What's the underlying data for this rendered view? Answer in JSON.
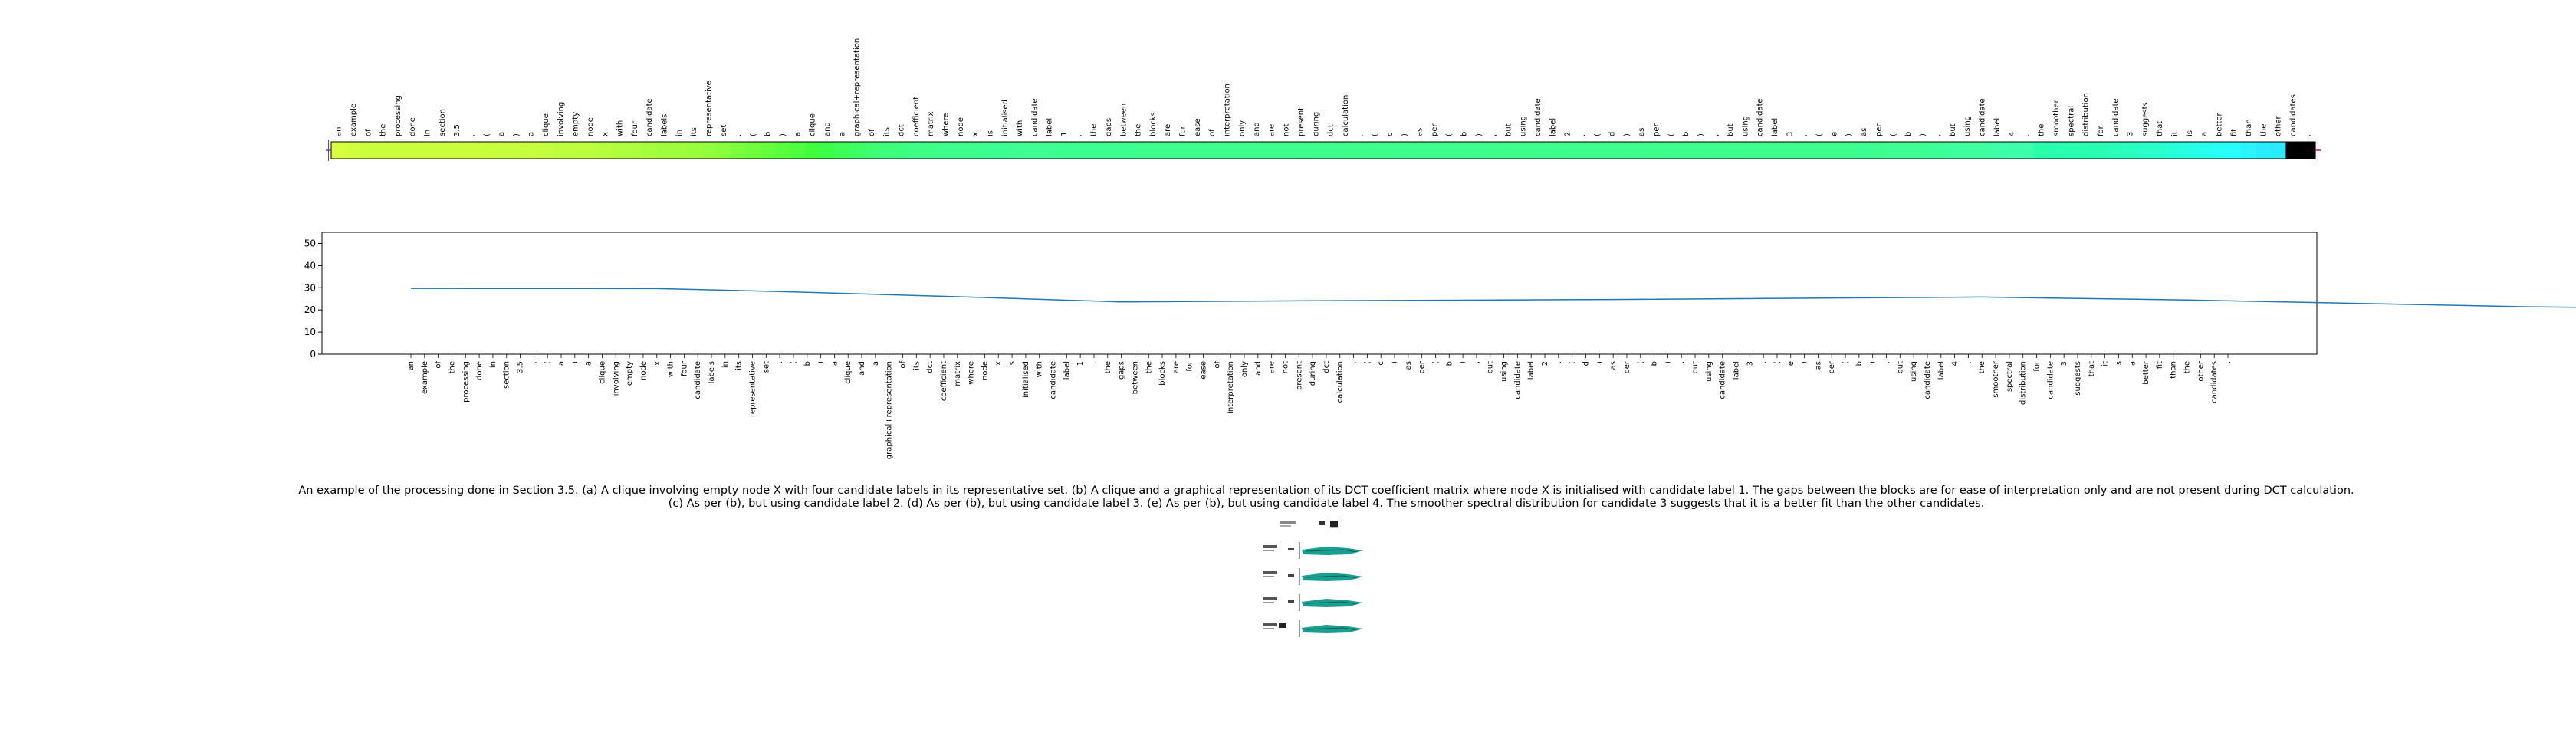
{
  "chart_data": [
    {
      "type": "heatmap",
      "colormap": "gist_rainbow",
      "tokens": [
        "an",
        "example",
        "of",
        "the",
        "processing",
        "done",
        "in",
        "section",
        "3.5",
        ".",
        "(",
        "a",
        ")",
        "a",
        "clique",
        "involving",
        "empty",
        "node",
        "x",
        "with",
        "four",
        "candidate",
        "labels",
        "in",
        "its",
        "representative",
        "set",
        ".",
        "(",
        "b",
        ")",
        "a",
        "clique",
        "and",
        "a",
        "graphical+representation",
        "of",
        "its",
        "dct",
        "coefficient",
        "matrix",
        "where",
        "node",
        "x",
        "is",
        "initialised",
        "with",
        "candidate",
        "label",
        "1",
        ".",
        "the",
        "gaps",
        "between",
        "the",
        "blocks",
        "are",
        "for",
        "ease",
        "of",
        "interpretation",
        "only",
        "and",
        "are",
        "not",
        "present",
        "during",
        "dct",
        "calculation",
        ".",
        "(",
        "c",
        ")",
        "as",
        "per",
        "(",
        "b",
        ")",
        ",",
        "but",
        "using",
        "candidate",
        "label",
        "2",
        ".",
        "(",
        "d",
        ")",
        "as",
        "per",
        "(",
        "b",
        ")",
        ",",
        "but",
        "using",
        "candidate",
        "label",
        "3",
        ".",
        "(",
        "e",
        ")",
        "as",
        "per",
        "(",
        "b",
        ")",
        ",",
        "but",
        "using",
        "candidate",
        "label",
        "4",
        ".",
        "the",
        "smoother",
        "spectral",
        "distribution",
        "for",
        "candidate",
        "3",
        "suggests",
        "that",
        "it",
        "is",
        "a",
        "better",
        "fit",
        "than",
        "the",
        "other",
        "candidates",
        "."
      ],
      "values": [
        0.199,
        0.205,
        0.21,
        0.21,
        0.21,
        0.21,
        0.21,
        0.21,
        0.211,
        0.212,
        0.213,
        0.214,
        0.216,
        0.218,
        0.22,
        0.221,
        0.222,
        0.225,
        0.23,
        0.236,
        0.24,
        0.245,
        0.249,
        0.251,
        0.256,
        0.262,
        0.27,
        0.28,
        0.29,
        0.3,
        0.31,
        0.32,
        0.33,
        0.342,
        0.355,
        0.368,
        0.378,
        0.385,
        0.39,
        0.394,
        0.397,
        0.4,
        0.402,
        0.404,
        0.405,
        0.406,
        0.407,
        0.407,
        0.407,
        0.406,
        0.406,
        0.406,
        0.405,
        0.405,
        0.404,
        0.404,
        0.403,
        0.403,
        0.403,
        0.403,
        0.402,
        0.402,
        0.402,
        0.402,
        0.402,
        0.401,
        0.401,
        0.401,
        0.401,
        0.401,
        0.401,
        0.401,
        0.401,
        0.401,
        0.401,
        0.401,
        0.401,
        0.401,
        0.401,
        0.401,
        0.401,
        0.401,
        0.401,
        0.401,
        0.401,
        0.401,
        0.401,
        0.401,
        0.401,
        0.401,
        0.401,
        0.401,
        0.401,
        0.401,
        0.401,
        0.401,
        0.401,
        0.401,
        0.401,
        0.402,
        0.402,
        0.403,
        0.404,
        0.405,
        0.406,
        0.407,
        0.408,
        0.409,
        0.411,
        0.413,
        0.415,
        0.418,
        0.421,
        0.425,
        0.428,
        0.432,
        0.435,
        0.438,
        0.44,
        0.443,
        0.446,
        0.45,
        0.455,
        0.462,
        0.47,
        0.478,
        0.486,
        0.494,
        0.502,
        0.508,
        0.513,
        0.518
      ]
    },
    {
      "type": "line",
      "series_color": "#1f77b4",
      "ylim": [
        0,
        55
      ],
      "yticks": [
        0,
        10,
        20,
        30,
        40,
        50
      ],
      "x_tokens": [
        "an",
        "example",
        "of",
        "the",
        "processing",
        "done",
        "in",
        "section",
        "3.5",
        ".",
        "(",
        "a",
        ")",
        "a",
        "clique",
        "involving",
        "empty",
        "node",
        "x",
        "with",
        "four",
        "candidate",
        "labels",
        "in",
        "its",
        "representative",
        "set",
        ".",
        "(",
        "b",
        ")",
        "a",
        "clique",
        "and",
        "a",
        "graphical+representation",
        "of",
        "its",
        "dct",
        "coefficient",
        "matrix",
        "where",
        "node",
        "x",
        "is",
        "initialised",
        "with",
        "candidate",
        "label",
        "1",
        ".",
        "the",
        "gaps",
        "between",
        "the",
        "blocks",
        "are",
        "for",
        "ease",
        "of",
        "interpretation",
        "only",
        "and",
        "are",
        "not",
        "present",
        "during",
        "dct",
        "calculation",
        ".",
        "(",
        "c",
        ")",
        "as",
        "per",
        "(",
        "b",
        ")",
        ",",
        "but",
        "using",
        "candidate",
        "label",
        "2",
        ".",
        "(",
        "d",
        ")",
        "as",
        "per",
        "(",
        "b",
        ")",
        ",",
        "but",
        "using",
        "candidate",
        "label",
        "3",
        ".",
        "(",
        "e",
        ")",
        "as",
        "per",
        "(",
        "b",
        ")",
        ",",
        "but",
        "using",
        "candidate",
        "label",
        "4",
        ".",
        "the",
        "smoother",
        "spectral",
        "distribution",
        "for",
        "candidate",
        "3",
        "suggests",
        "that",
        "it",
        "is",
        "a",
        "better",
        "fit",
        "than",
        "the",
        "other",
        "candidates",
        "."
      ],
      "points": [
        [
          0,
          29.7
        ],
        [
          18,
          29.6
        ],
        [
          27,
          28.3
        ],
        [
          42,
          25.6
        ],
        [
          52,
          23.6
        ],
        [
          66,
          24.1
        ],
        [
          88,
          24.7
        ],
        [
          115,
          25.8
        ],
        [
          130,
          24.5
        ],
        [
          155,
          21.4
        ],
        [
          167,
          20.6
        ],
        [
          175,
          18.8
        ]
      ]
    }
  ],
  "caption": "An example of the processing done in Section 3.5. (a) A clique involving empty node X with four candidate labels in its representative set. (b) A clique and a graphical representation of its DCT coefficient matrix where node X is initialised with candidate label 1. The gaps between the blocks are for ease of interpretation only and are not present during DCT calculation. (c) As per (b), but using candidate label 2. (d) As per (b), but using candidate label 3. (e) As per (b), but using candidate label 4. The smoother spectral distribution for candidate 3 suggests that it is a better fit than the other candidates."
}
